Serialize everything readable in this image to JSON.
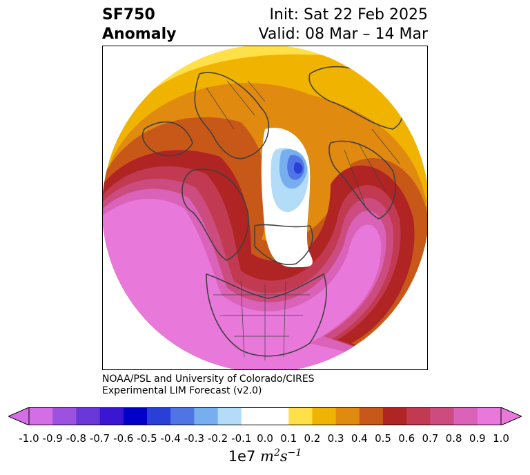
{
  "header": {
    "title_line1": "SF750",
    "title_line2": "Anomaly",
    "init": "Init: Sat 22 Feb 2025",
    "valid": "Valid: 08 Mar – 14 Mar"
  },
  "credit": {
    "line1": "NOAA/PSL and University of Colorado/CIRES",
    "line2": "Experimental LIM Forecast (v2.0)"
  },
  "colorbar": {
    "unit_prefix": "1e7",
    "unit_m": "m",
    "unit_m_exp": "2",
    "unit_s": "s",
    "unit_s_exp": "−1",
    "ticks": [
      "-1.0",
      "-0.9",
      "-0.8",
      "-0.7",
      "-0.6",
      "-0.5",
      "-0.4",
      "-0.3",
      "-0.2",
      "-0.1",
      "0.0",
      "0.1",
      "0.2",
      "0.3",
      "0.4",
      "0.5",
      "0.6",
      "0.7",
      "0.8",
      "0.9",
      "1.0"
    ],
    "colors": [
      "#d46ee6",
      "#9c51e0",
      "#6a38d8",
      "#3a16d2",
      "#0000c8",
      "#2a3fd8",
      "#4f74e6",
      "#76aef0",
      "#b2dcf8",
      "#ffffff",
      "#ffffff",
      "#ffe048",
      "#f0b400",
      "#e08a10",
      "#c85818",
      "#b02424",
      "#c23a52",
      "#cc4c80",
      "#da62b8",
      "#e878da"
    ],
    "under_color": "#d46ee6",
    "over_color": "#e878da"
  }
}
